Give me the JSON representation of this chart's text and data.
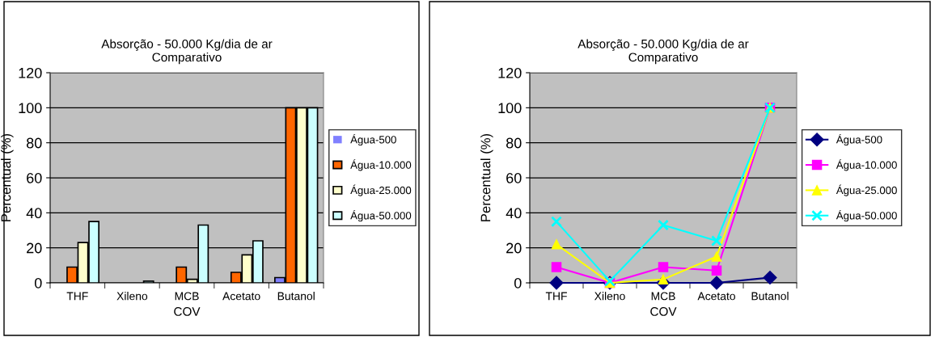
{
  "chart_data": [
    {
      "type": "bar",
      "title": "Absorção - 50.000 Kg/dia de ar\nComparativo",
      "xlabel": "COV",
      "ylabel": "Percentual (%)",
      "categories": [
        "THF",
        "Xileno",
        "MCB",
        "Acetato",
        "Butanol"
      ],
      "ylim": [
        0,
        120
      ],
      "yticks": [
        0,
        20,
        40,
        60,
        80,
        100,
        120
      ],
      "grid": "y",
      "legend": "right",
      "series": [
        {
          "name": "Água-500",
          "color": "#8080ff",
          "values": [
            0,
            0,
            0,
            0,
            3
          ]
        },
        {
          "name": "Água-10.000",
          "color": "#ff6600",
          "values": [
            9,
            0,
            9,
            6,
            100
          ]
        },
        {
          "name": "Água-25.000",
          "color": "#ffffcc",
          "values": [
            23,
            0,
            2,
            16,
            100
          ]
        },
        {
          "name": "Água-50.000",
          "color": "#ccffff",
          "values": [
            35,
            1,
            33,
            24,
            100
          ]
        }
      ]
    },
    {
      "type": "line",
      "title": "Absorção - 50.000 Kg/dia de ar\nComparativo",
      "xlabel": "COV",
      "ylabel": "Percentual (%)",
      "categories": [
        "THF",
        "Xileno",
        "MCB",
        "Acetato",
        "Butanol"
      ],
      "ylim": [
        0,
        120
      ],
      "yticks": [
        0,
        20,
        40,
        60,
        80,
        100,
        120
      ],
      "grid": "y",
      "legend": "right",
      "series": [
        {
          "name": "Água-500",
          "color": "#000080",
          "marker": "diamond",
          "values": [
            0,
            0,
            0,
            0,
            3
          ]
        },
        {
          "name": "Água-10.000",
          "color": "#ff00ff",
          "marker": "square",
          "values": [
            9,
            0,
            9,
            7,
            100
          ]
        },
        {
          "name": "Água-25.000",
          "color": "#ffff00",
          "marker": "triangle",
          "values": [
            22,
            0,
            2,
            15,
            100
          ]
        },
        {
          "name": "Água-50.000",
          "color": "#00ffff",
          "marker": "cross",
          "values": [
            35,
            1,
            33,
            24,
            100
          ]
        }
      ]
    }
  ]
}
